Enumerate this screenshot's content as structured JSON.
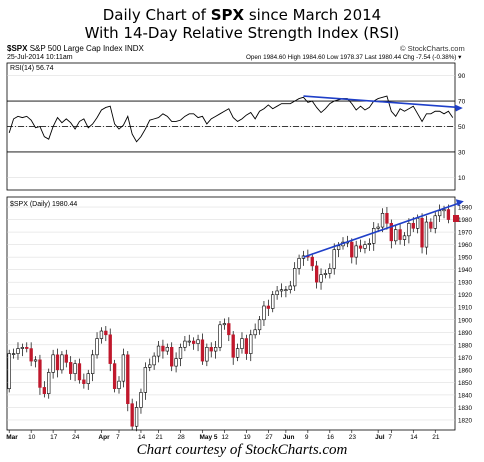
{
  "title": {
    "line1_pre": "Daily Chart of ",
    "line1_bold": "SPX",
    "line1_post": " since March 2014",
    "line2": "With 14-Day Relative Strength Index (RSI)"
  },
  "header": {
    "symbol": "$SPX",
    "name": "S&P 500 Large Cap Index",
    "exchange": "INDX",
    "date": "25-Jul-2014 10:11am",
    "watermark": "© StockCharts.com",
    "quote": "Open 1984.60  High 1984.60  Low 1978.37  Last 1980.44  Chg -7.54 (-0.38%) ▾"
  },
  "rsi_label": "RSI(14) 56.74",
  "price_label": "$SPX (Daily) 1980.44",
  "footer": "Chart courtesy of StockCharts.com",
  "colors": {
    "up": "#ffffff",
    "down": "#c0182c",
    "trend": "#1f3fc8",
    "grid": "#d7d7d7",
    "frame": "#000000"
  },
  "chart_data": [
    {
      "type": "line",
      "name": "RSI(14)",
      "ylim": [
        0,
        100
      ],
      "yticks": [
        10,
        30,
        50,
        70,
        90
      ],
      "ref_lines": {
        "solid": [
          70,
          30
        ],
        "dashed": [
          50
        ]
      },
      "x": [
        "Mar 3",
        "Mar 4",
        "Mar 5",
        "Mar 6",
        "Mar 7",
        "Mar 10",
        "Mar 11",
        "Mar 12",
        "Mar 13",
        "Mar 14",
        "Mar 17",
        "Mar 18",
        "Mar 19",
        "Mar 20",
        "Mar 21",
        "Mar 24",
        "Mar 25",
        "Mar 26",
        "Mar 27",
        "Mar 28",
        "Mar 31",
        "Apr 1",
        "Apr 2",
        "Apr 3",
        "Apr 4",
        "Apr 7",
        "Apr 8",
        "Apr 9",
        "Apr 10",
        "Apr 11",
        "Apr 14",
        "Apr 15",
        "Apr 16",
        "Apr 17",
        "Apr 21",
        "Apr 22",
        "Apr 23",
        "Apr 24",
        "Apr 25",
        "Apr 28",
        "Apr 29",
        "Apr 30",
        "May 1",
        "May 2",
        "May 5",
        "May 6",
        "May 7",
        "May 8",
        "May 9",
        "May 12",
        "May 13",
        "May 14",
        "May 15",
        "May 16",
        "May 19",
        "May 20",
        "May 21",
        "May 22",
        "May 23",
        "May 27",
        "May 28",
        "May 29",
        "May 30",
        "Jun 2",
        "Jun 3",
        "Jun 4",
        "Jun 5",
        "Jun 6",
        "Jun 9",
        "Jun 10",
        "Jun 11",
        "Jun 12",
        "Jun 13",
        "Jun 16",
        "Jun 17",
        "Jun 18",
        "Jun 19",
        "Jun 20",
        "Jun 23",
        "Jun 24",
        "Jun 25",
        "Jun 26",
        "Jun 27",
        "Jun 30",
        "Jul 1",
        "Jul 2",
        "Jul 3",
        "Jul 7",
        "Jul 8",
        "Jul 9",
        "Jul 10",
        "Jul 11",
        "Jul 14",
        "Jul 15",
        "Jul 16",
        "Jul 17",
        "Jul 18",
        "Jul 21",
        "Jul 22",
        "Jul 23",
        "Jul 24",
        "Jul 25"
      ],
      "values": [
        45,
        56,
        58,
        57,
        58,
        55,
        49,
        50,
        42,
        40,
        50,
        57,
        53,
        56,
        53,
        48,
        54,
        56,
        49,
        52,
        57,
        63,
        65,
        66,
        52,
        48,
        51,
        58,
        44,
        38,
        42,
        48,
        55,
        56,
        57,
        60,
        58,
        54,
        54,
        55,
        58,
        60,
        60,
        57,
        58,
        52,
        56,
        58,
        60,
        62,
        64,
        57,
        54,
        56,
        59,
        61,
        56,
        62,
        64,
        67,
        64,
        66,
        68,
        68,
        68,
        70,
        72,
        73,
        69,
        70,
        65,
        61,
        64,
        68,
        70,
        71,
        72,
        72,
        68,
        63,
        66,
        63,
        65,
        70,
        72,
        73,
        74,
        62,
        58,
        64,
        62,
        64,
        66,
        60,
        54,
        60,
        60,
        62,
        62,
        60,
        62,
        57
      ],
      "trendline": {
        "from": {
          "x": "Jun 6",
          "y": 74
        },
        "to": {
          "x": "Jul 25",
          "y": 65
        }
      }
    },
    {
      "type": "candlestick",
      "name": "$SPX (Daily)",
      "ylim": [
        1812,
        1998
      ],
      "yticks": [
        1820,
        1830,
        1840,
        1850,
        1860,
        1870,
        1880,
        1890,
        1900,
        1910,
        1920,
        1930,
        1940,
        1950,
        1960,
        1970,
        1980,
        1990
      ],
      "xticks": [
        "Mar",
        "10",
        "17",
        "24",
        "Apr",
        "7",
        "14",
        "21",
        "28",
        "May 5",
        "12",
        "19",
        "27",
        "Jun",
        "9",
        "16",
        "23",
        "Jul",
        "7",
        "14",
        "21"
      ],
      "close": [
        1845,
        1873,
        1873,
        1877,
        1878,
        1877,
        1867,
        1868,
        1846,
        1841,
        1858,
        1872,
        1860,
        1872,
        1866,
        1857,
        1865,
        1852,
        1849,
        1857,
        1872,
        1885,
        1891,
        1888,
        1865,
        1845,
        1851,
        1872,
        1833,
        1815,
        1830,
        1842,
        1862,
        1864,
        1871,
        1879,
        1875,
        1878,
        1863,
        1869,
        1878,
        1883,
        1883,
        1881,
        1884,
        1867,
        1878,
        1875,
        1878,
        1896,
        1897,
        1888,
        1870,
        1877,
        1885,
        1873,
        1888,
        1892,
        1900,
        1911,
        1909,
        1920,
        1923,
        1924,
        1924,
        1927,
        1941,
        1949,
        1951,
        1950,
        1943,
        1930,
        1936,
        1937,
        1941,
        1956,
        1959,
        1962,
        1962,
        1950,
        1959,
        1957,
        1960,
        1961,
        1973,
        1974,
        1985,
        1977,
        1963,
        1972,
        1964,
        1967,
        1977,
        1973,
        1981,
        1958,
        1978,
        1973,
        1983,
        1987,
        1988,
        1980
      ],
      "trendline": {
        "from": {
          "x": "Jun 6",
          "y": 1950
        },
        "to": {
          "x": "Jul 25",
          "y": 1993
        }
      }
    }
  ]
}
